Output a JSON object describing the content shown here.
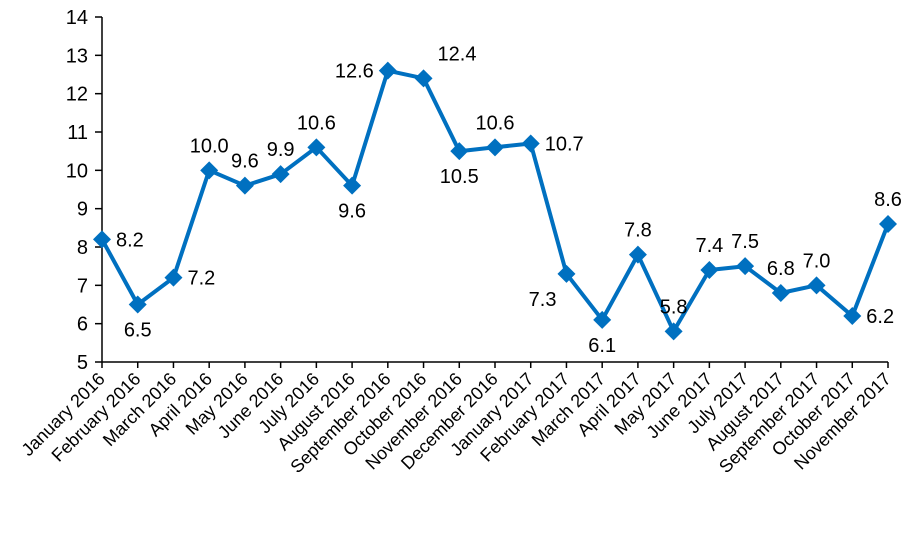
{
  "chart_data": {
    "type": "line",
    "title": "",
    "xlabel": "",
    "ylabel": "",
    "ylim": [
      5,
      14
    ],
    "yticks": [
      5,
      6,
      7,
      8,
      9,
      10,
      11,
      12,
      13,
      14
    ],
    "grid": false,
    "legend": "none",
    "marker": "diamond",
    "color": "#0070C0",
    "categories": [
      "January 2016",
      "February 2016",
      "March 2016",
      "April 2016",
      "May 2016",
      "June 2016",
      "July 2016",
      "August 2016",
      "September 2016",
      "October 2016",
      "November 2016",
      "December 2016",
      "January 2017",
      "February 2017",
      "March 2017",
      "April 2017",
      "May 2017",
      "June 2017",
      "July 2017",
      "August 2017",
      "September 2017",
      "October 2017",
      "November 2017"
    ],
    "values": [
      8.2,
      6.5,
      7.2,
      10.0,
      9.6,
      9.9,
      10.6,
      9.6,
      12.6,
      12.4,
      10.5,
      10.6,
      10.7,
      7.3,
      6.1,
      7.8,
      5.8,
      7.4,
      7.5,
      6.8,
      7.0,
      6.2,
      8.6
    ],
    "data_labels": [
      "8.2",
      "6.5",
      "7.2",
      "10.0",
      "9.6",
      "9.9",
      "10.6",
      "9.6",
      "12.6",
      "12.4",
      "10.5",
      "10.6",
      "10.7",
      "7.3",
      "6.1",
      "7.8",
      "5.8",
      "7.4",
      "7.5",
      "6.8",
      "7.0",
      "6.2",
      "8.6"
    ]
  }
}
